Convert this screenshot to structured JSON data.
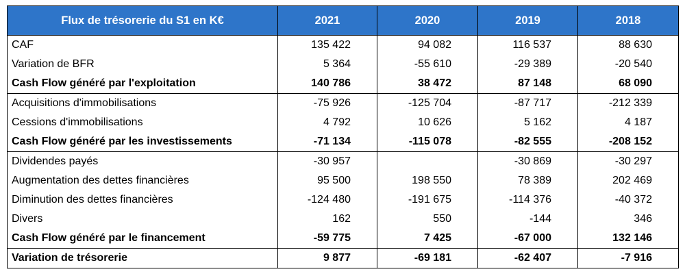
{
  "table": {
    "header": [
      "Flux de trésorerie du S1 en K€",
      "2021",
      "2020",
      "2019",
      "2018"
    ],
    "sections": [
      {
        "rows": [
          {
            "cells": [
              "CAF",
              "135 422",
              "94 082",
              "116 537",
              "88 630"
            ]
          },
          {
            "cells": [
              "Variation de BFR",
              "5 364",
              "-55 610",
              "-29 389",
              "-20 540"
            ]
          },
          {
            "cells": [
              "Cash Flow généré par l'exploitation",
              "140 786",
              "38 472",
              "87 148",
              "68 090"
            ],
            "bold": true
          }
        ]
      },
      {
        "rows": [
          {
            "cells": [
              "Acquisitions d'immobilisations",
              "-75 926",
              "-125 704",
              "-87 717",
              "-212 339"
            ]
          },
          {
            "cells": [
              "Cessions d'immobilisations",
              "4 792",
              "10 626",
              "5 162",
              "4 187"
            ]
          },
          {
            "cells": [
              "Cash Flow généré par les investissements",
              "-71 134",
              "-115 078",
              "-82 555",
              "-208 152"
            ],
            "bold": true
          }
        ]
      },
      {
        "rows": [
          {
            "cells": [
              "Dividendes payés",
              "-30 957",
              null,
              "-30 869",
              "-30 297"
            ]
          },
          {
            "cells": [
              "Augmentation des dettes financières",
              "95 500",
              "198 550",
              "78 389",
              "202 469"
            ]
          },
          {
            "cells": [
              "Diminution des dettes financières",
              "-124 480",
              "-191 675",
              "-114 376",
              "-40 372"
            ]
          },
          {
            "cells": [
              "Divers",
              "162",
              "550",
              "-144",
              "346"
            ]
          },
          {
            "cells": [
              "Cash Flow généré par le financement",
              "-59 775",
              "7 425",
              "-67 000",
              "132 146"
            ],
            "bold": true
          }
        ]
      },
      {
        "rows": [
          {
            "cells": [
              "Variation de trésorerie",
              "9 877",
              "-69 181",
              "-62 407",
              "-7 916"
            ],
            "bold": true
          }
        ]
      }
    ],
    "header_color": "#2e75c9"
  }
}
